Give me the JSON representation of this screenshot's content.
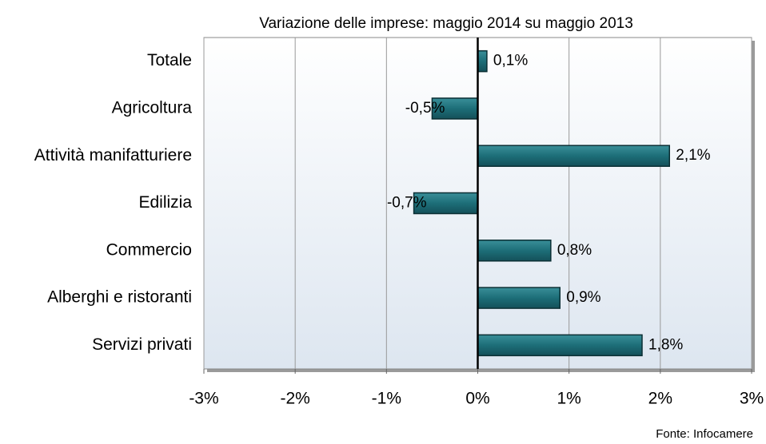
{
  "chart_data": {
    "type": "bar",
    "orientation": "horizontal",
    "title": "Variazione delle imprese: maggio 2014 su maggio 2013",
    "source": "Fonte: Infocamere",
    "categories": [
      "Totale",
      "Agricoltura",
      "Attività manifatturiere",
      "Edilizia",
      "Commercio",
      "Alberghi e ristoranti",
      "Servizi privati"
    ],
    "values": [
      0.1,
      -0.5,
      2.1,
      -0.7,
      0.8,
      0.9,
      1.8
    ],
    "value_labels": [
      "0,1%",
      "-0,5%",
      "2,1%",
      "-0,7%",
      "0,8%",
      "0,9%",
      "1,8%"
    ],
    "color": "#1d6e78",
    "xlim": [
      -3,
      3
    ],
    "xticks": [
      {
        "value": -3,
        "label": "-3%"
      },
      {
        "value": -2,
        "label": "-2%"
      },
      {
        "value": -1,
        "label": "-1%"
      },
      {
        "value": 0,
        "label": "0%"
      },
      {
        "value": 1,
        "label": "1%"
      },
      {
        "value": 2,
        "label": "2%"
      },
      {
        "value": 3,
        "label": "3%"
      }
    ],
    "grid": true
  }
}
